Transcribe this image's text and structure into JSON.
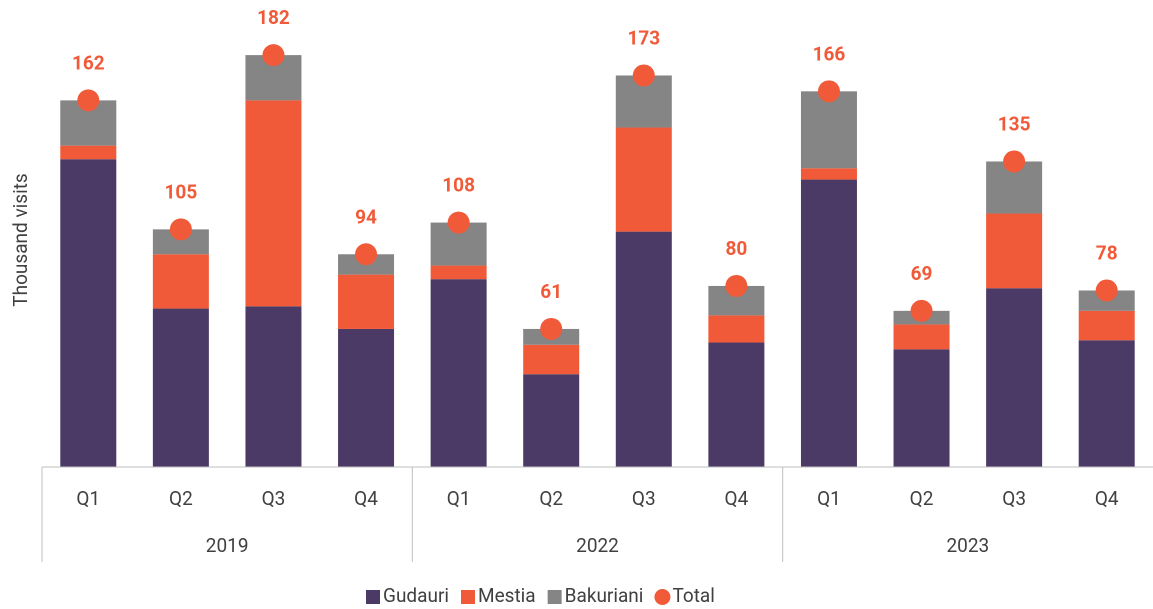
{
  "chart_data": {
    "type": "bar",
    "stacked": true,
    "y_label": "Thousand visits",
    "groups": [
      {
        "name": "2019",
        "categories": [
          "Q1",
          "Q2",
          "Q3",
          "Q4"
        ]
      },
      {
        "name": "2022",
        "categories": [
          "Q1",
          "Q2",
          "Q3",
          "Q4"
        ]
      },
      {
        "name": "2023",
        "categories": [
          "Q1",
          "Q2",
          "Q3",
          "Q4"
        ]
      }
    ],
    "ylim": [
      0,
      190
    ],
    "series": [
      {
        "name": "Gudauri",
        "color": "#4b3a66",
        "values": [
          136,
          70,
          71,
          61,
          83,
          41,
          104,
          55,
          127,
          52,
          79,
          56
        ]
      },
      {
        "name": "Mestia",
        "color": "#f05a38",
        "values": [
          6,
          24,
          91,
          24,
          6,
          13,
          46,
          12,
          5,
          11,
          33,
          13
        ]
      },
      {
        "name": "Bakuriani",
        "color": "#858585",
        "values": [
          20,
          11,
          20,
          9,
          19,
          7,
          23,
          13,
          34,
          6,
          23,
          9
        ]
      },
      {
        "name": "Total",
        "color": "#f05a38",
        "mark": "dot",
        "values": [
          162,
          105,
          182,
          94,
          108,
          61,
          173,
          80,
          166,
          69,
          135,
          78
        ]
      }
    ]
  }
}
